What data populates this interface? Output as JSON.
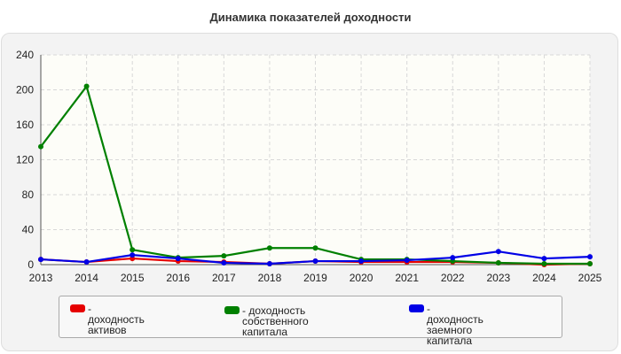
{
  "chart_data": {
    "type": "line",
    "title": "Динамика показателей доходности",
    "categories": [
      "2013",
      "2014",
      "2015",
      "2016",
      "2017",
      "2018",
      "2019",
      "2020",
      "2021",
      "2022",
      "2023",
      "2024",
      "2025"
    ],
    "ylim": [
      0,
      240
    ],
    "yticks": [
      0,
      40,
      80,
      120,
      160,
      200,
      240
    ],
    "grid": true,
    "legend_position": "bottom",
    "series": [
      {
        "name": "- доходность активов",
        "color": "#e60000",
        "values": [
          6,
          3,
          7,
          4,
          3,
          1,
          4,
          3,
          3,
          3,
          2,
          0,
          1
        ]
      },
      {
        "name": "- доходность собственного\nкапитала",
        "color": "#008000",
        "values": [
          135,
          204,
          17,
          8,
          10,
          19,
          19,
          6,
          6,
          4,
          2,
          1,
          1
        ]
      },
      {
        "name": "- доходность заемного\nкапитала",
        "color": "#0000e6",
        "values": [
          6,
          3,
          11,
          7,
          2,
          1,
          4,
          4,
          5,
          8,
          15,
          7,
          9
        ]
      }
    ]
  }
}
